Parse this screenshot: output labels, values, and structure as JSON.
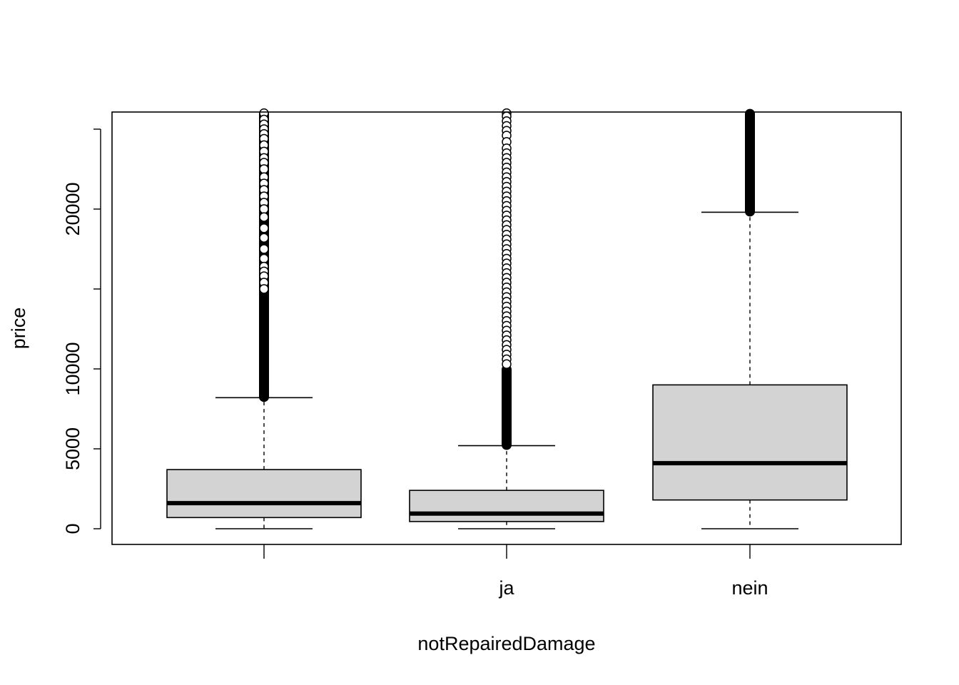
{
  "chart_data": {
    "type": "boxplot",
    "title": "",
    "xlabel": "notRepairedDamage",
    "ylabel": "price",
    "ylim": [
      -1000,
      26000
    ],
    "yticks": [
      0,
      5000,
      10000,
      15000,
      20000,
      25000
    ],
    "ytick_labels": [
      "0",
      "5000",
      "10000",
      "",
      "20000",
      ""
    ],
    "categories": [
      "",
      "ja",
      "nein"
    ],
    "box_fill": "#d3d3d3",
    "boxes": [
      {
        "category": "",
        "whisker_low": 0,
        "q1": 700,
        "median": 1600,
        "q3": 3700,
        "whisker_high": 8200,
        "outlier_dense_ranges": [
          [
            8200,
            15000
          ],
          [
            15000,
            26000
          ]
        ],
        "outlier_points": [
          26000,
          25600,
          25300,
          25000,
          24700,
          24400,
          24000,
          23600,
          23200,
          22900,
          22500,
          22000,
          21600,
          21200,
          20800,
          20400,
          20000,
          19500,
          18800,
          18200,
          17500,
          16900,
          16400,
          16100,
          15800,
          15400,
          15000
        ]
      },
      {
        "category": "ja",
        "whisker_low": 0,
        "q1": 450,
        "median": 950,
        "q3": 2400,
        "whisker_high": 5200,
        "outlier_dense_ranges": [
          [
            5200,
            10000
          ]
        ],
        "outlier_points": [
          26000,
          25800,
          25500,
          25200,
          24900,
          24600,
          24200,
          23800,
          23500,
          23200,
          22900,
          22600,
          22300,
          22000,
          21700,
          21400,
          21100,
          20800,
          20500,
          20200,
          19900,
          19600,
          19300,
          19000,
          18700,
          18400,
          18100,
          17800,
          17500,
          17200,
          16900,
          16600,
          16300,
          16000,
          15700,
          15400,
          15100,
          14800,
          14500,
          14200,
          13900,
          13600,
          13300,
          13000,
          12700,
          12400,
          12100,
          11800,
          11500,
          11200,
          10900,
          10600,
          10300
        ]
      },
      {
        "category": "nein",
        "whisker_low": 0,
        "q1": 1800,
        "median": 4100,
        "q3": 9000,
        "whisker_high": 19800,
        "outlier_dense_ranges": [
          [
            19800,
            26000
          ]
        ],
        "outlier_points": []
      }
    ]
  }
}
